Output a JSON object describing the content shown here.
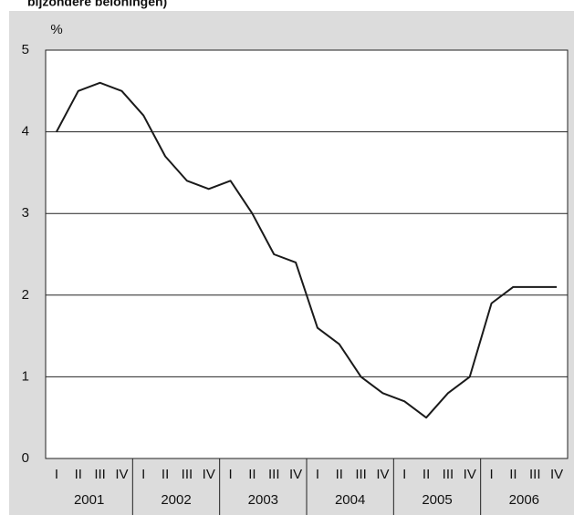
{
  "chart_data": {
    "type": "line",
    "subtitle": "bijzondere beloningen)",
    "y_label": "%",
    "categories": [
      "I",
      "II",
      "III",
      "IV",
      "I",
      "II",
      "III",
      "IV",
      "I",
      "II",
      "III",
      "IV",
      "I",
      "II",
      "III",
      "IV",
      "I",
      "II",
      "III",
      "IV",
      "I",
      "II",
      "III",
      "IV"
    ],
    "groups": [
      "2001",
      "2002",
      "2003",
      "2004",
      "2005",
      "2006"
    ],
    "values": [
      4.0,
      4.5,
      4.6,
      4.5,
      4.2,
      3.7,
      3.4,
      3.3,
      3.4,
      3.0,
      2.5,
      2.4,
      1.6,
      1.4,
      1.0,
      0.8,
      0.7,
      0.5,
      0.8,
      1.0,
      1.9,
      2.1,
      2.1,
      2.1
    ],
    "color": "#1a1a1a",
    "ylim": [
      0,
      5
    ],
    "yticks": [
      0,
      1,
      2,
      3,
      4,
      5
    ],
    "grid": true
  }
}
